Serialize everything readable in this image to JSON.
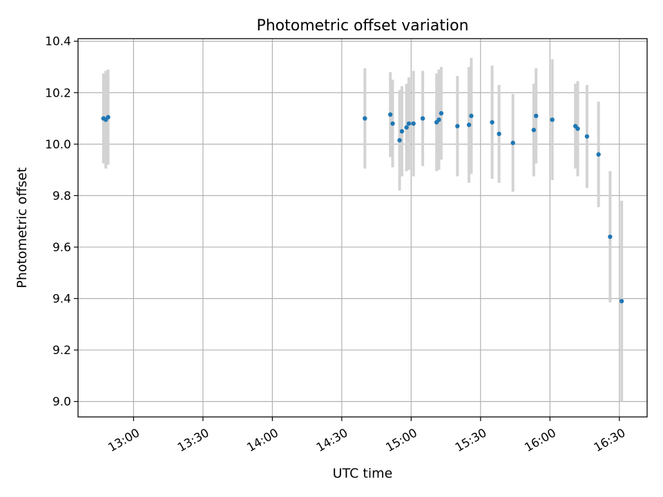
{
  "chart_data": {
    "type": "scatter",
    "title": "Photometric offset variation",
    "xlabel": "UTC time",
    "ylabel": "Photometric offset",
    "x_tick_labels": [
      "13:00",
      "13:30",
      "14:00",
      "14:30",
      "15:00",
      "15:30",
      "16:00",
      "16:30"
    ],
    "y_tick_labels": [
      "9.0",
      "9.2",
      "9.4",
      "9.6",
      "9.8",
      "10.0",
      "10.2",
      "10.4"
    ],
    "xlim": [
      "12:36",
      "16:42"
    ],
    "ylim": [
      8.94,
      10.41
    ],
    "grid": true,
    "legend": "none",
    "colors": {
      "points": "#1f77b4",
      "errorbars": "#d3d3d3",
      "grid": "#b0b0b0",
      "axes": "#000000"
    },
    "points": [
      {
        "x": "12:47",
        "y": 10.1,
        "err": 0.175
      },
      {
        "x": "12:48",
        "y": 10.095,
        "err": 0.19
      },
      {
        "x": "12:49",
        "y": 10.105,
        "err": 0.185
      },
      {
        "x": "14:40",
        "y": 10.1,
        "err": 0.195
      },
      {
        "x": "14:51",
        "y": 10.115,
        "err": 0.165
      },
      {
        "x": "14:52",
        "y": 10.08,
        "err": 0.17
      },
      {
        "x": "14:55",
        "y": 10.015,
        "err": 0.195
      },
      {
        "x": "14:56",
        "y": 10.05,
        "err": 0.175
      },
      {
        "x": "14:58",
        "y": 10.065,
        "err": 0.17
      },
      {
        "x": "14:59",
        "y": 10.08,
        "err": 0.18
      },
      {
        "x": "15:01",
        "y": 10.08,
        "err": 0.205
      },
      {
        "x": "15:05",
        "y": 10.1,
        "err": 0.185
      },
      {
        "x": "15:11",
        "y": 10.085,
        "err": 0.19
      },
      {
        "x": "15:12",
        "y": 10.095,
        "err": 0.195
      },
      {
        "x": "15:13",
        "y": 10.12,
        "err": 0.18
      },
      {
        "x": "15:20",
        "y": 10.07,
        "err": 0.195
      },
      {
        "x": "15:25",
        "y": 10.075,
        "err": 0.225
      },
      {
        "x": "15:26",
        "y": 10.11,
        "err": 0.225
      },
      {
        "x": "15:35",
        "y": 10.085,
        "err": 0.22
      },
      {
        "x": "15:38",
        "y": 10.04,
        "err": 0.19
      },
      {
        "x": "15:44",
        "y": 10.005,
        "err": 0.19
      },
      {
        "x": "15:53",
        "y": 10.055,
        "err": 0.18
      },
      {
        "x": "15:54",
        "y": 10.11,
        "err": 0.185
      },
      {
        "x": "16:01",
        "y": 10.095,
        "err": 0.235
      },
      {
        "x": "16:11",
        "y": 10.07,
        "err": 0.165
      },
      {
        "x": "16:12",
        "y": 10.06,
        "err": 0.185
      },
      {
        "x": "16:16",
        "y": 10.03,
        "err": 0.2
      },
      {
        "x": "16:21",
        "y": 9.96,
        "err": 0.205
      },
      {
        "x": "16:26",
        "y": 9.64,
        "err": 0.255
      },
      {
        "x": "16:31",
        "y": 9.39,
        "err": 0.39
      }
    ]
  }
}
